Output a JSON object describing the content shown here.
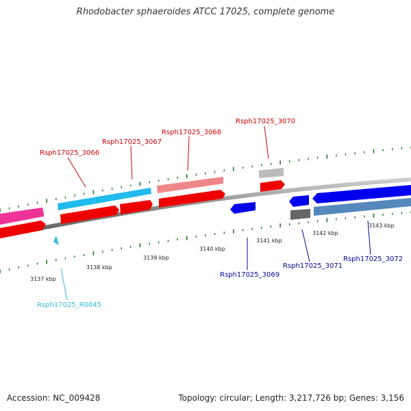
{
  "title": "Rhodobacter sphaeroides ATCC 17025, complete genome",
  "footer": {
    "accession": "Accession: NC_009428",
    "stats": "Topology: circular; Length: 3,217,726 bp; Genes: 3,156"
  },
  "colors": {
    "backbone": "#888888",
    "tick": "#1a7a1a",
    "forward_label": "#cc0000",
    "reverse_label": "#000099",
    "rna_label": "#33bbdd"
  },
  "scale_labels": [
    {
      "text": "3137 kbp"
    },
    {
      "text": "3138 kbp"
    },
    {
      "text": "3139 kbp"
    },
    {
      "text": "3140 kbp"
    },
    {
      "text": "3141 kbp"
    },
    {
      "text": "3142 kbp"
    },
    {
      "text": "3143 kbp"
    }
  ],
  "gene_labels": [
    {
      "text": "Rsph17025_3066",
      "strand": "forward"
    },
    {
      "text": "Rsph17025_3067",
      "strand": "forward"
    },
    {
      "text": "Rsph17025_3068",
      "strand": "forward"
    },
    {
      "text": "Rsph17025_3070",
      "strand": "forward"
    },
    {
      "text": "Rsph17025_3069",
      "strand": "reverse"
    },
    {
      "text": "Rsph17025_3071",
      "strand": "reverse"
    },
    {
      "text": "Rsph17025_3072",
      "strand": "reverse"
    },
    {
      "text": "Rsph17025_R0045",
      "strand": "rna"
    }
  ]
}
